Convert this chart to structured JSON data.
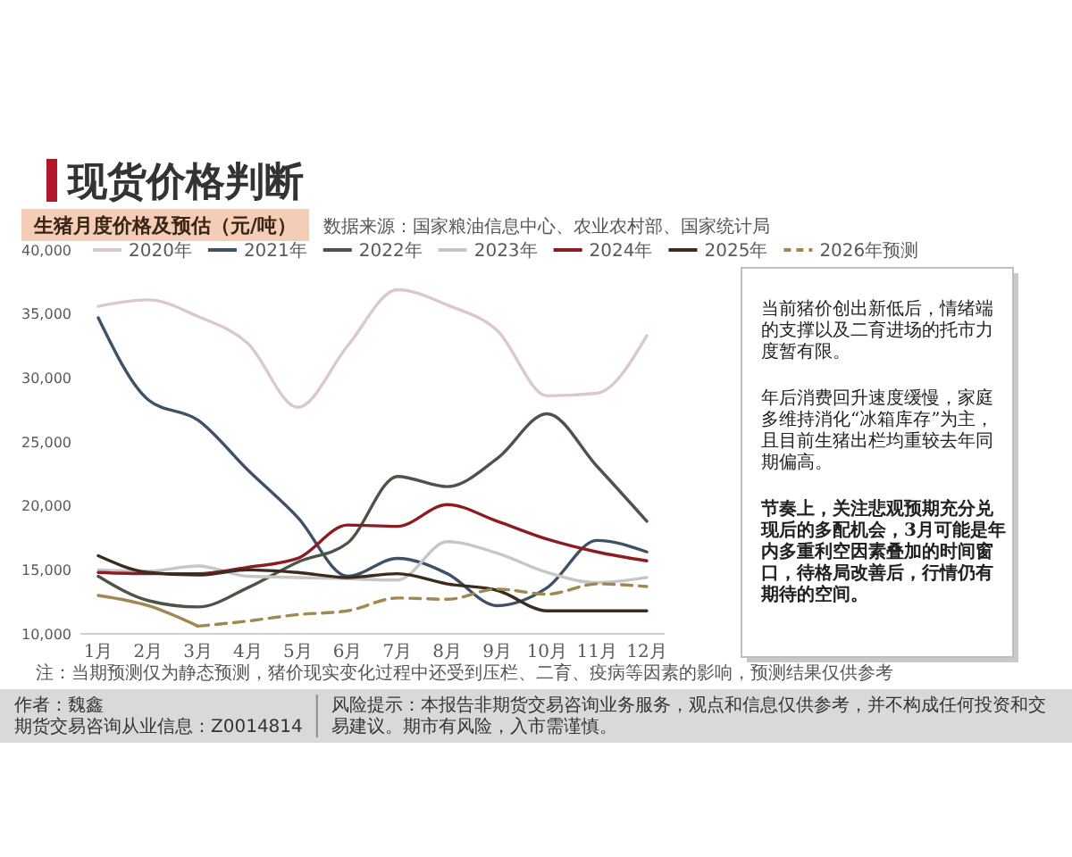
{
  "chart_data": [
    {
      "type": "line",
      "title": "现货价格判断",
      "subtitle": "生猪月度价格及预估（元/吨）",
      "categories": [
        "1月",
        "2月",
        "3月",
        "4月",
        "5月",
        "6月",
        "7月",
        "8月",
        "9月",
        "10月",
        "11月",
        "12月"
      ],
      "series": [
        {
          "name": "2020年",
          "color": "#dcc8c8",
          "values": [
            35600,
            36100,
            34800,
            32700,
            27700,
            32500,
            36900,
            35700,
            33700,
            28600,
            28800,
            33300
          ]
        },
        {
          "name": "2021年",
          "color": "#3e5166",
          "values": [
            34700,
            28300,
            26700,
            22800,
            19100,
            14500,
            15900,
            14700,
            12200,
            13600,
            17300,
            16400
          ]
        },
        {
          "name": "2022年",
          "color": "#4a5548",
          "values": [
            14500,
            12600,
            12100,
            13600,
            15600,
            17100,
            22300,
            21500,
            23700,
            27200,
            23100,
            18800
          ]
        },
        {
          "name": "2023年",
          "color": "#c6c6c6",
          "values": [
            15000,
            14900,
            15300,
            14500,
            14400,
            14300,
            14200,
            17200,
            16300,
            14800,
            14000,
            14400
          ]
        },
        {
          "name": "2024年",
          "color": "#8c1c22",
          "values": [
            14800,
            14700,
            14700,
            15200,
            15900,
            18500,
            18400,
            20100,
            18800,
            17400,
            16400,
            15700
          ]
        },
        {
          "name": "2025年",
          "color": "#3a2c1e",
          "values": [
            16100,
            14800,
            14600,
            15000,
            14800,
            14400,
            14700,
            13900,
            13400,
            11800,
            11800,
            11800
          ]
        },
        {
          "color": "#a08850",
          "values": [
            13000,
            12200,
            10600,
            null,
            null,
            null,
            null,
            null,
            null,
            null,
            null,
            null
          ]
        },
        {
          "name": "2026年预测",
          "color": "#a08850",
          "line_style": "dashed",
          "values": [
            null,
            null,
            10600,
            11000,
            11500,
            11800,
            12800,
            12700,
            13500,
            13100,
            13900,
            13700
          ]
        }
      ],
      "ylim": [
        10000,
        40000
      ],
      "yticks": [
        {
          "value": 10000,
          "label": "10,000"
        },
        {
          "value": 15000,
          "label": "15,000"
        },
        {
          "value": 20000,
          "label": "20,000"
        },
        {
          "value": 25000,
          "label": "25,000"
        },
        {
          "value": 30000,
          "label": "30,000"
        },
        {
          "value": 35000,
          "label": "35,000"
        },
        {
          "value": 40000,
          "label": "40,000"
        }
      ],
      "legend": "top",
      "line_style": "solid",
      "annotations": [
        "数据来源：国家粮油信息中心、农业农村部、国家统计局",
        "注：当期预测仅为静态预测，猪价现实变化过程中还受到压栏、二育、疫病等因素的影响，预测结果仅供参考"
      ]
    },
    {
      "type": "other",
      "annotations": [
        "当前猪价创出新低后，情绪端的支撑以及二育进场的托市力度暂有限。",
        "年后消费回升速度缓慢，家庭多维持消化“冰箱库存”为主，且目前生猪出栏均重较去年同期偏高。",
        "节奏上，关注悲观预期充分兑现后的多配机会，3月可能是年内多重利空因素叠加的时间窗口，待格局改善后，行情仍有期待的空间。"
      ]
    },
    {
      "type": "other",
      "annotations": [
        "作者：魏鑫",
        "期货交易咨询从业信息：Z0014814",
        "风险提示：本报告非期货交易咨询业务服务，观点和信息仅供参考，并不构成任何投资和交易建议。期市有风险，入市需谨慎。"
      ]
    }
  ]
}
